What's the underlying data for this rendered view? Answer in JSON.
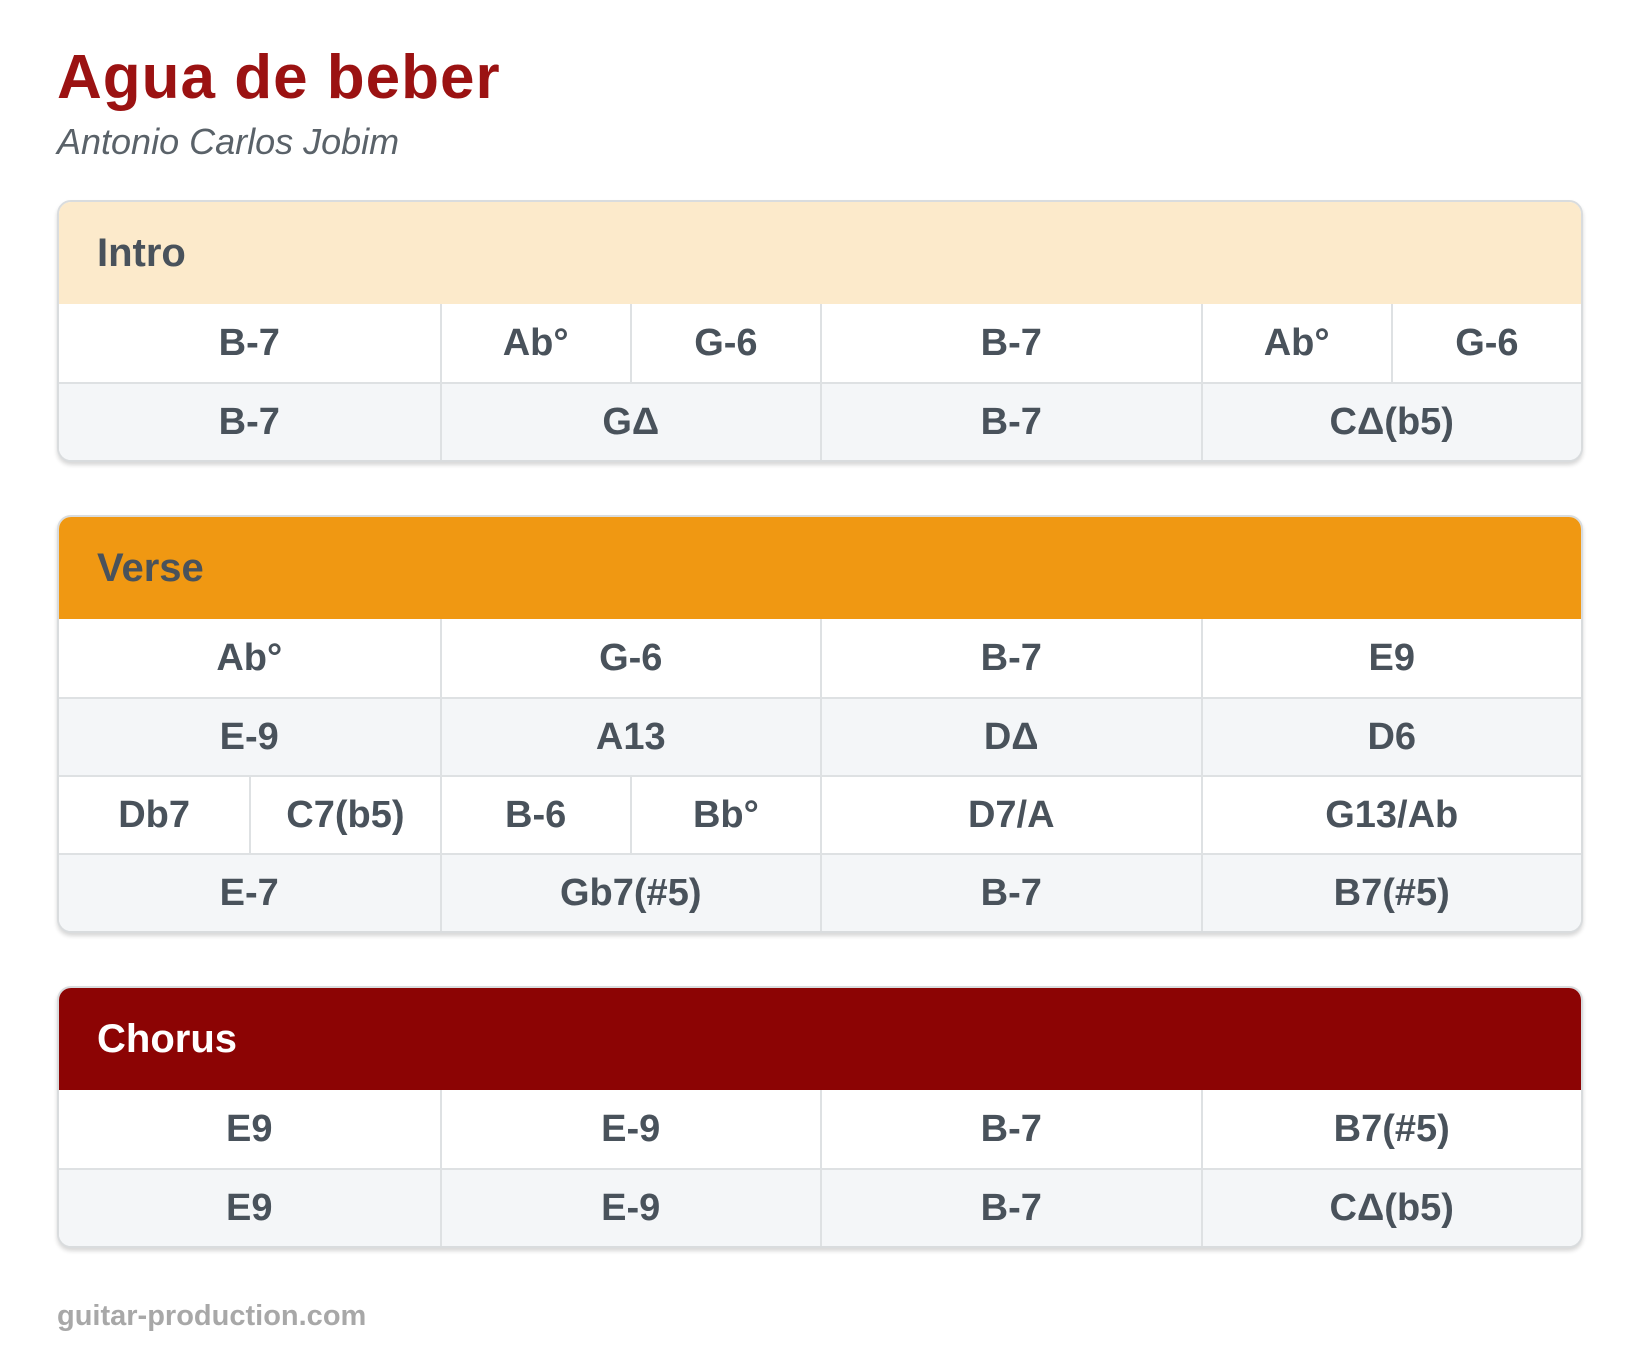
{
  "song": {
    "title": "Agua de beber",
    "artist": "Antonio Carlos Jobim",
    "footer": "guitar-production.com"
  },
  "colors": {
    "title": "#9B1212",
    "artist": "#5A6269",
    "chord_text": "#49525B",
    "intro_header_bg": "#FCEACB",
    "verse_header_bg": "#F09812",
    "chorus_header_bg": "#8C0404",
    "chorus_header_text": "#FFFFFF",
    "alt_row_bg": "#F4F6F8",
    "divider": "#DEE1E3",
    "footer_text": "#A8A8A8"
  },
  "sections": [
    {
      "label": "Intro",
      "header_style": "cream",
      "rows": [
        {
          "cells": [
            {
              "chord": "B-7",
              "span": 2
            },
            {
              "chord": "Ab°",
              "span": 1
            },
            {
              "chord": "G-6",
              "span": 1
            },
            {
              "chord": "B-7",
              "span": 2
            },
            {
              "chord": "Ab°",
              "span": 1
            },
            {
              "chord": "G-6",
              "span": 1
            }
          ]
        },
        {
          "cells": [
            {
              "chord": "B-7",
              "span": 2
            },
            {
              "chord": "GΔ",
              "span": 2
            },
            {
              "chord": "B-7",
              "span": 2
            },
            {
              "chord": "CΔ(b5)",
              "span": 2
            }
          ]
        }
      ]
    },
    {
      "label": "Verse",
      "header_style": "orange",
      "rows": [
        {
          "cells": [
            {
              "chord": "Ab°",
              "span": 2
            },
            {
              "chord": "G-6",
              "span": 2
            },
            {
              "chord": "B-7",
              "span": 2
            },
            {
              "chord": "E9",
              "span": 2
            }
          ]
        },
        {
          "cells": [
            {
              "chord": "E-9",
              "span": 2
            },
            {
              "chord": "A13",
              "span": 2
            },
            {
              "chord": "DΔ",
              "span": 2
            },
            {
              "chord": "D6",
              "span": 2
            }
          ]
        },
        {
          "cells": [
            {
              "chord": "Db7",
              "span": 1
            },
            {
              "chord": "C7(b5)",
              "span": 1
            },
            {
              "chord": "B-6",
              "span": 1
            },
            {
              "chord": "Bb°",
              "span": 1
            },
            {
              "chord": "D7/A",
              "span": 2
            },
            {
              "chord": "G13/Ab",
              "span": 2
            }
          ]
        },
        {
          "cells": [
            {
              "chord": "E-7",
              "span": 2
            },
            {
              "chord": "Gb7(#5)",
              "span": 2
            },
            {
              "chord": "B-7",
              "span": 2
            },
            {
              "chord": "B7(#5)",
              "span": 2
            }
          ]
        }
      ]
    },
    {
      "label": "Chorus",
      "header_style": "red",
      "rows": [
        {
          "cells": [
            {
              "chord": "E9",
              "span": 2
            },
            {
              "chord": "E-9",
              "span": 2
            },
            {
              "chord": "B-7",
              "span": 2
            },
            {
              "chord": "B7(#5)",
              "span": 2
            }
          ]
        },
        {
          "cells": [
            {
              "chord": "E9",
              "span": 2
            },
            {
              "chord": "E-9",
              "span": 2
            },
            {
              "chord": "B-7",
              "span": 2
            },
            {
              "chord": "CΔ(b5)",
              "span": 2
            }
          ]
        }
      ]
    }
  ]
}
